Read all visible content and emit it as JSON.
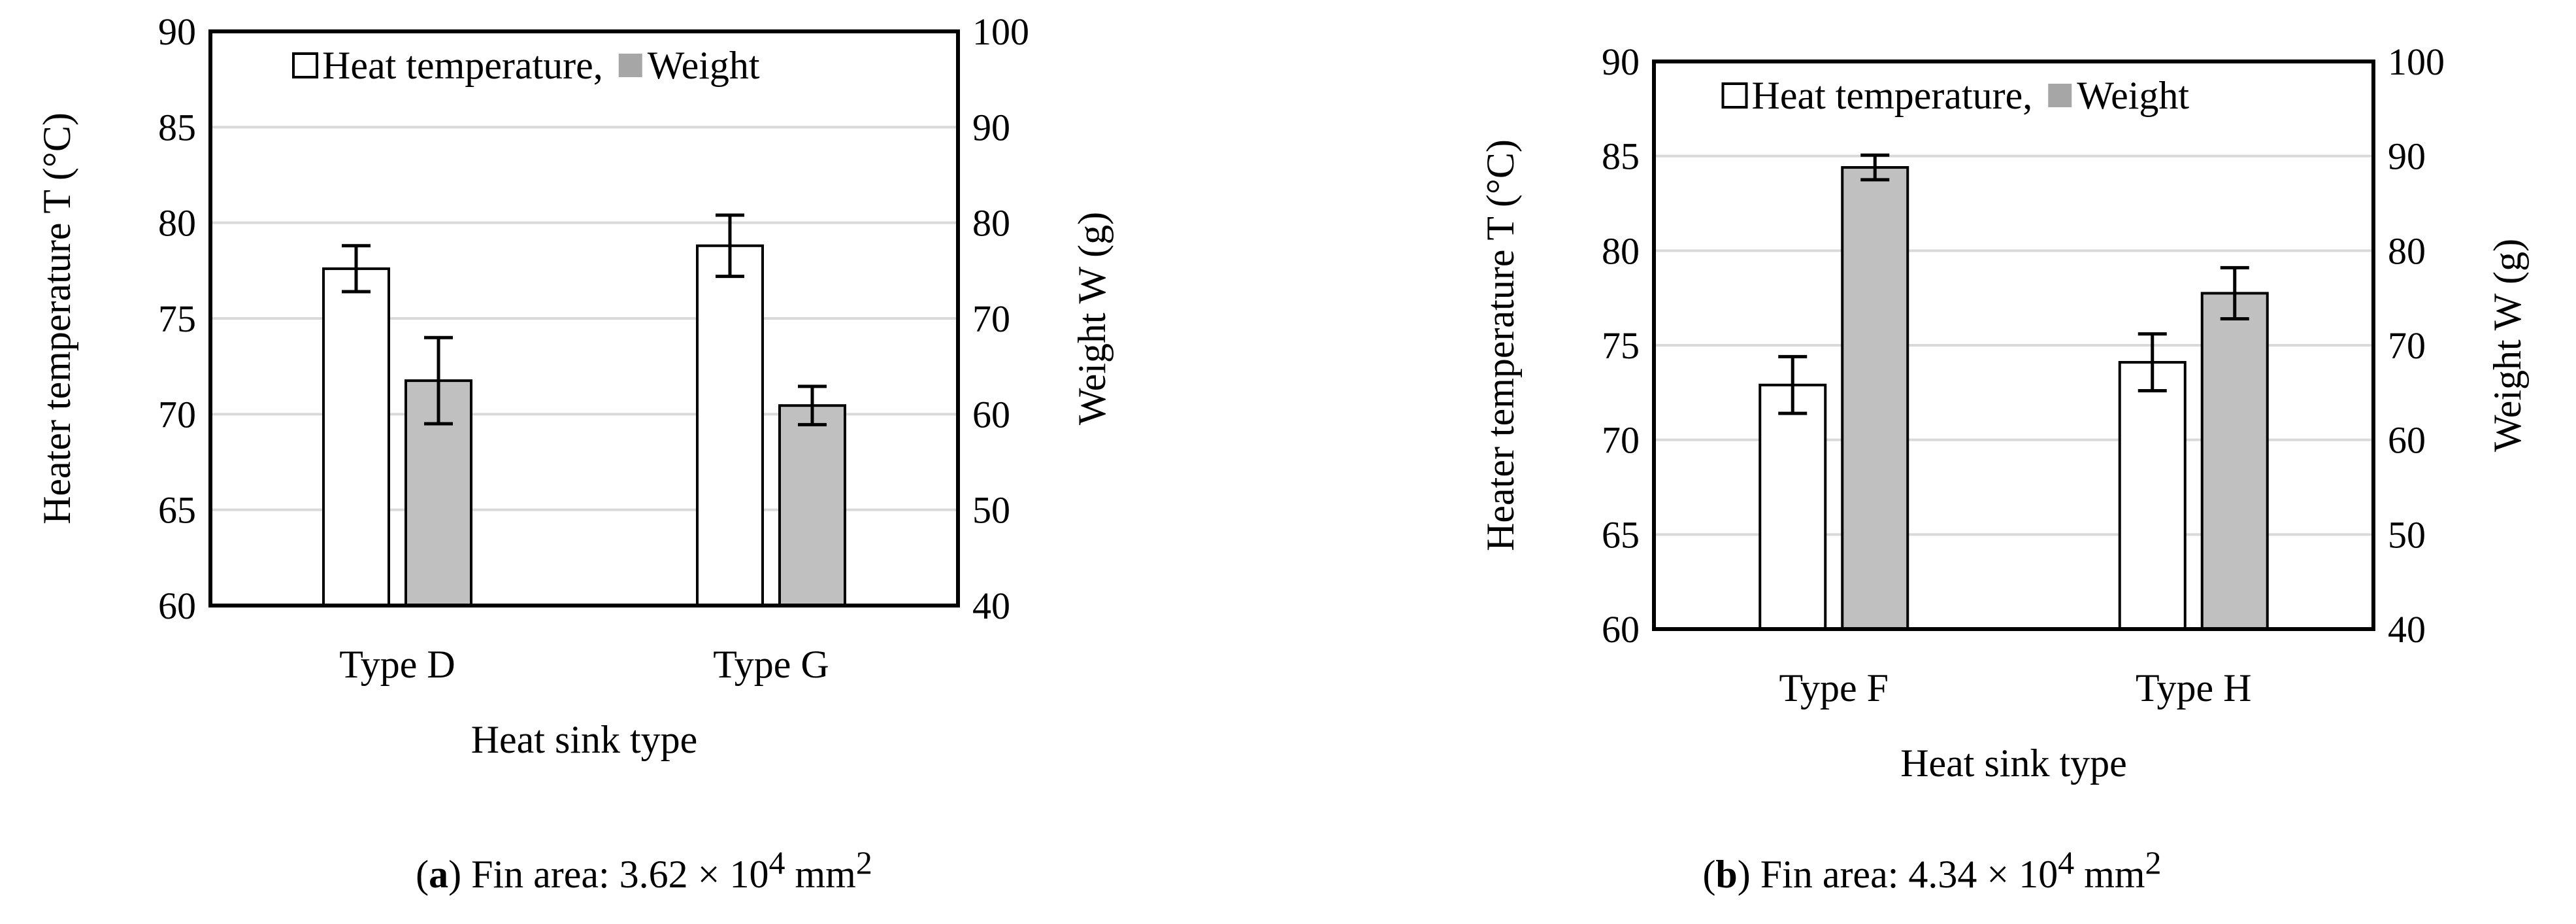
{
  "chart_data": [
    {
      "type": "bar",
      "categories": [
        "Type D",
        "Type G"
      ],
      "xlabel": "Heat sink type",
      "ylabel": "Heater temperature T (°C)",
      "y2label": "Weight W (g)",
      "ylim": [
        60,
        90
      ],
      "y2lim": [
        40,
        100
      ],
      "yticks": [
        "60",
        "65",
        "70",
        "75",
        "80",
        "85",
        "90"
      ],
      "y2ticks": [
        "40",
        "50",
        "60",
        "70",
        "80",
        "90",
        "100"
      ],
      "grid": true,
      "legend": {
        "position": "top",
        "entries": [
          "Heat temperature,",
          "Weight"
        ]
      },
      "series": [
        {
          "name": "Heat temperature",
          "axis": "left",
          "color": "#ffffff",
          "values": [
            77.6,
            78.8
          ],
          "errors": [
            1.2,
            1.6
          ]
        },
        {
          "name": "Weight",
          "axis": "right",
          "color": "#c0c0c0",
          "values": [
            63.5,
            60.9
          ],
          "errors": [
            4.5,
            2.0
          ]
        }
      ],
      "caption": {
        "label": "a",
        "text": "Fin area: 3.62 × 10",
        "exp": "4",
        "unit": "mm",
        "unit_exp": "2"
      }
    },
    {
      "type": "bar",
      "categories": [
        "Type F",
        "Type H"
      ],
      "xlabel": "Heat sink type",
      "ylabel": "Heater temperature T (°C)",
      "y2label": "Weight W (g)",
      "ylim": [
        60,
        90
      ],
      "y2lim": [
        40,
        100
      ],
      "yticks": [
        "60",
        "65",
        "70",
        "75",
        "80",
        "85",
        "90"
      ],
      "y2ticks": [
        "40",
        "50",
        "60",
        "70",
        "80",
        "90",
        "100"
      ],
      "grid": true,
      "legend": {
        "position": "top",
        "entries": [
          "Heat temperature,",
          "Weight"
        ]
      },
      "series": [
        {
          "name": "Heat temperature",
          "axis": "left",
          "color": "#ffffff",
          "values": [
            72.9,
            74.1
          ],
          "errors": [
            1.5,
            1.5
          ]
        },
        {
          "name": "Weight",
          "axis": "right",
          "color": "#c0c0c0",
          "values": [
            88.8,
            75.5
          ],
          "errors": [
            1.3,
            2.7
          ]
        }
      ],
      "caption": {
        "label": "b",
        "text": "Fin area: 4.34 × 10",
        "exp": "4",
        "unit": "mm",
        "unit_exp": "2"
      }
    }
  ]
}
